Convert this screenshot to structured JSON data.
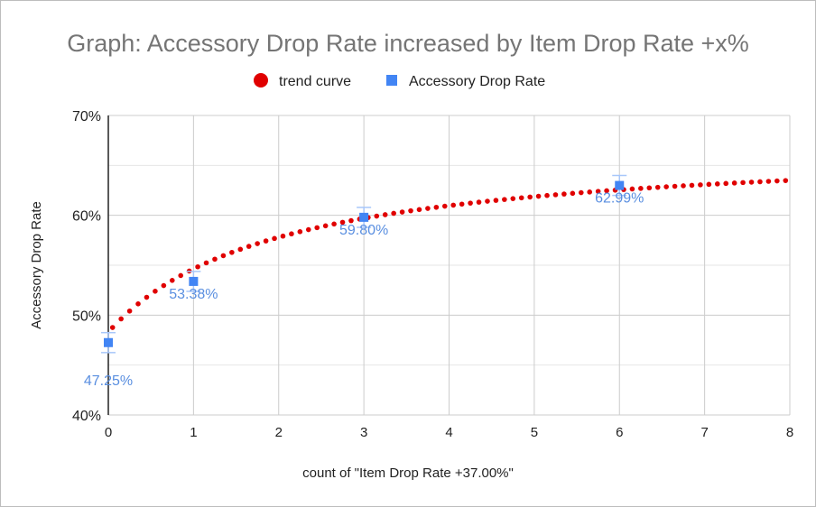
{
  "chart_data": {
    "type": "scatter",
    "title": "Graph: Accessory Drop Rate increased by Item Drop Rate +x%",
    "xlabel": "count of \"Item Drop Rate +37.00%\"",
    "ylabel": "Accessory Drop Rate",
    "xlim": [
      0,
      8
    ],
    "ylim": [
      40,
      70
    ],
    "x_ticks": [
      "0",
      "1",
      "2",
      "3",
      "4",
      "5",
      "6",
      "7",
      "8"
    ],
    "y_ticks": [
      "40%",
      "50%",
      "60%",
      "70%"
    ],
    "grid": true,
    "legend_position": "top",
    "legend": [
      "trend curve",
      "Accessory Drop Rate"
    ],
    "series": [
      {
        "name": "Accessory Drop Rate",
        "color": "#4285f4",
        "points": [
          {
            "x": 0,
            "y": 47.25,
            "label": "47.25%",
            "err": 1
          },
          {
            "x": 1,
            "y": 53.38,
            "label": "53.38%",
            "err": 1
          },
          {
            "x": 3,
            "y": 59.8,
            "label": "59.80%",
            "err": 1
          },
          {
            "x": 6,
            "y": 62.99,
            "label": "62.99%",
            "err": 1
          }
        ]
      },
      {
        "name": "trend curve",
        "color": "#e00000",
        "fit": {
          "form": "a + b*x/(x+c)",
          "a": 48.3,
          "b": 19,
          "c": 2
        },
        "x_range": [
          0.05,
          8
        ]
      }
    ]
  }
}
